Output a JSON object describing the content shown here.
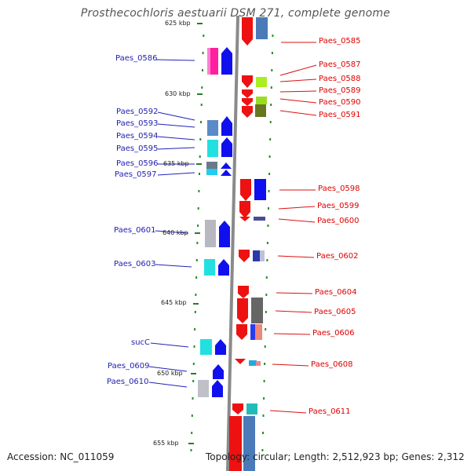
{
  "title": "Prosthecochloris aestuarii DSM 271, complete genome",
  "accession": "Accession: NC_011059",
  "topology": "Topology: circular; Length: 2,512,923 bp; Genes: 2,312",
  "ruler": {
    "ticks": [
      "625 kbp",
      "630 kbp",
      "635 kbp",
      "640 kbp",
      "645 kbp",
      "650 kbp",
      "655 kbp"
    ]
  },
  "colors": {
    "forward": "#1111ee",
    "reverse": "#ee1111",
    "forward_label": "#1f1fb0",
    "reverse_label": "#e00000",
    "backbone": "#888888"
  },
  "genes_left": [
    "Paes_0586",
    "Paes_0592",
    "Paes_0593",
    "Paes_0594",
    "Paes_0595",
    "Paes_0596",
    "Paes_0597",
    "Paes_0601",
    "Paes_0603",
    "sucC",
    "Paes_0609",
    "Paes_0610"
  ],
  "genes_right": [
    "Paes_0585",
    "Paes_0587",
    "Paes_0588",
    "Paes_0589",
    "Paes_0590",
    "Paes_0591",
    "Paes_0598",
    "Paes_0599",
    "Paes_0600",
    "Paes_0602",
    "Paes_0604",
    "Paes_0605",
    "Paes_0606",
    "Paes_0608",
    "Paes_0611"
  ]
}
